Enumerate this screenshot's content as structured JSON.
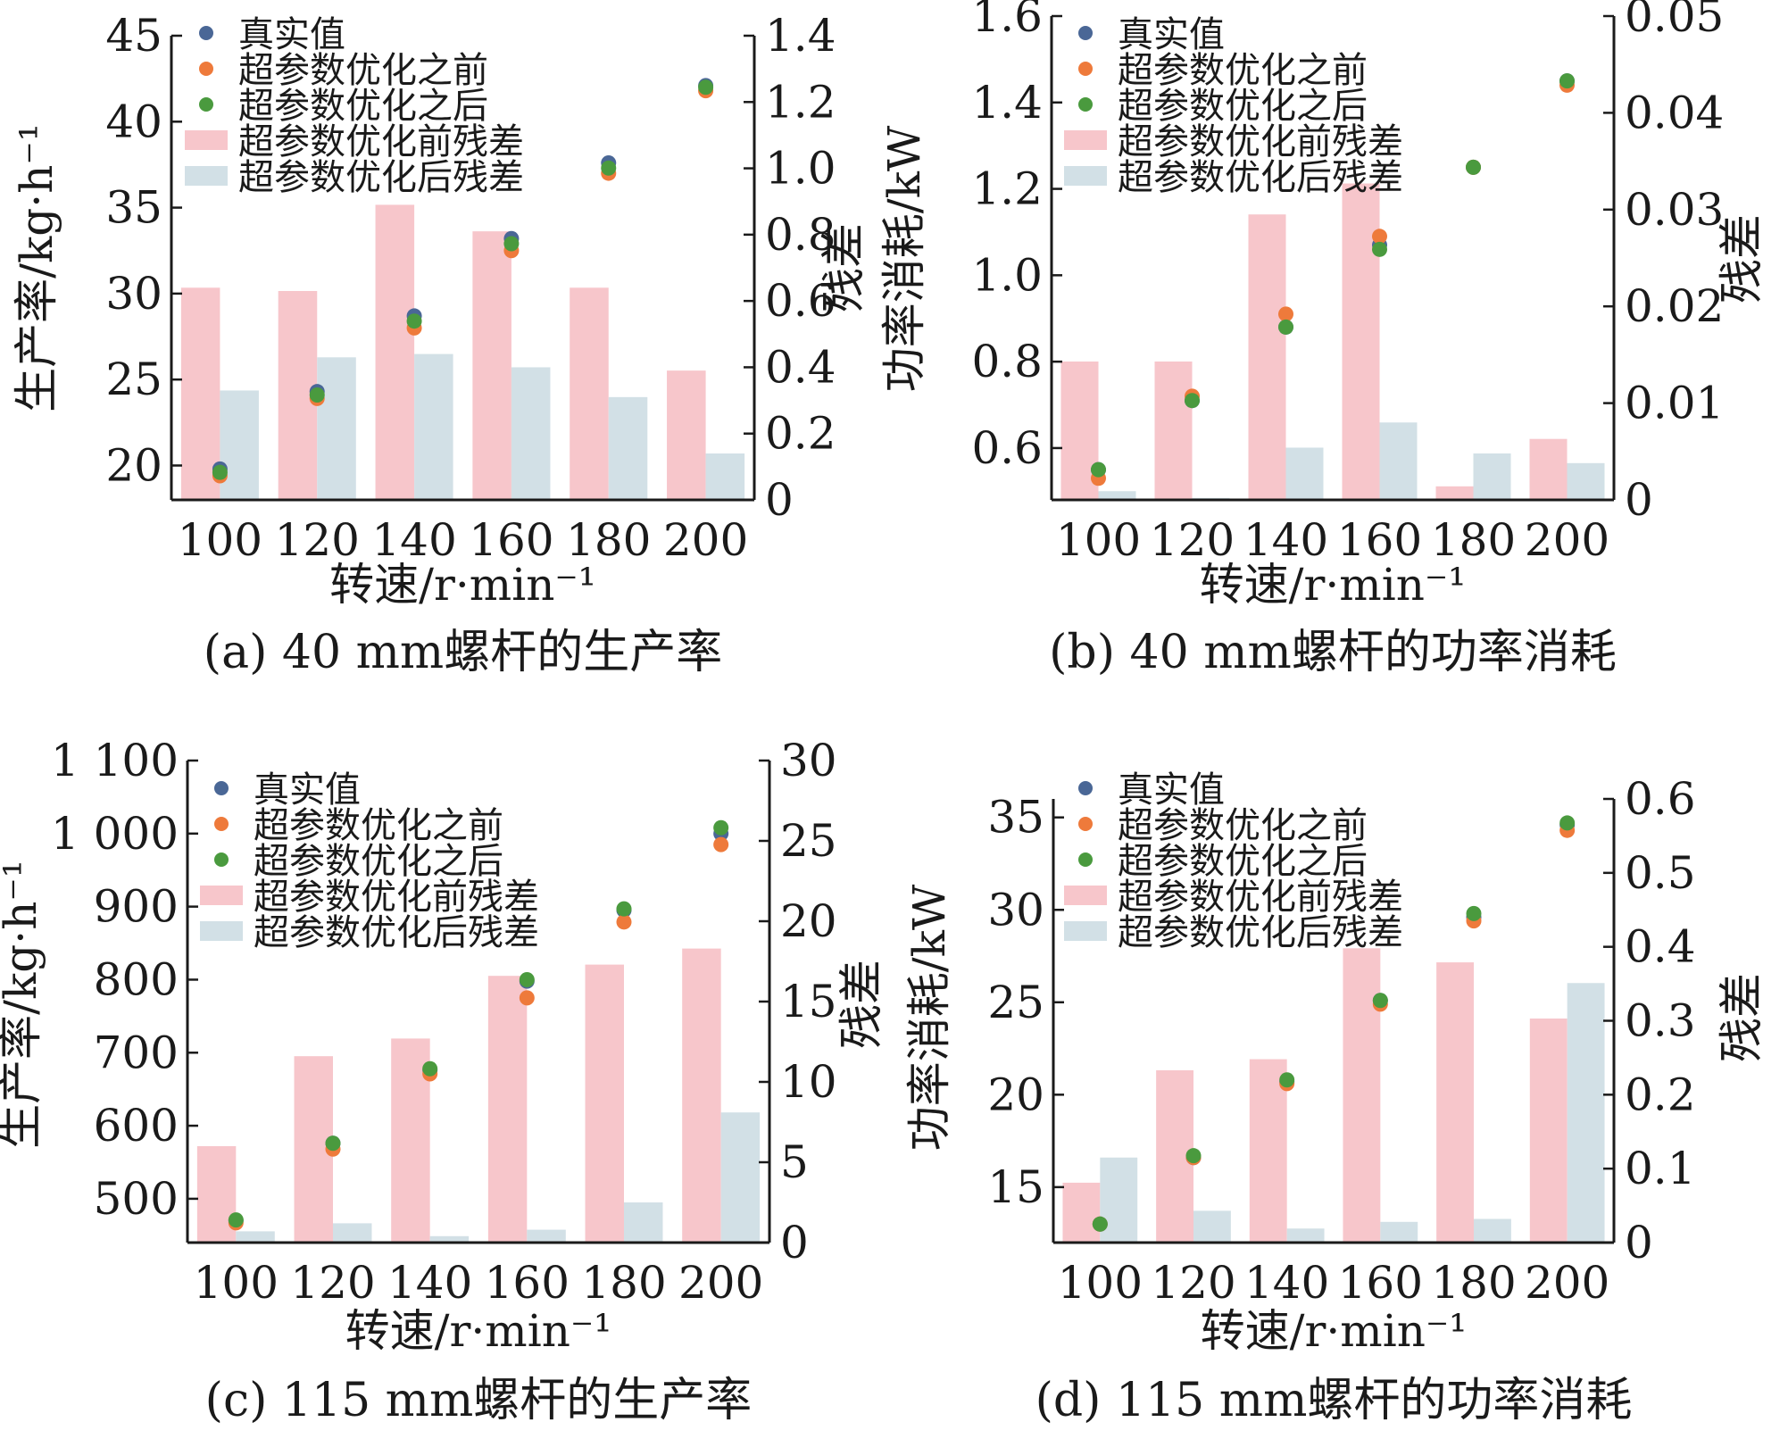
{
  "colors": {
    "true_value": "#4a6796",
    "before": "#ee7a3b",
    "after": "#4a9a3e",
    "resid_before": "#f7c6cb",
    "resid_after": "#d2e0e6",
    "axis": "#1a1a1a"
  },
  "legend": {
    "true_value": "真实值",
    "before": "超参数优化之前",
    "after": "超参数优化之后",
    "resid_before": "超参数优化前残差",
    "resid_after": "超参数优化后残差"
  },
  "chart_data": [
    {
      "type": "bar+scatter",
      "caption": "(a) 40 mm螺杆的生产率",
      "xlabel": "转速/r·min⁻¹",
      "ylabel": "生产率/kg·h⁻¹",
      "ylabel2": "残差",
      "categories": [
        "100",
        "120",
        "140",
        "160",
        "180",
        "200"
      ],
      "ylim": [
        18,
        45
      ],
      "yticks": [
        20,
        25,
        30,
        35,
        40,
        45
      ],
      "ytick_labels": [
        "20",
        "25",
        "30",
        "35",
        "40",
        "45"
      ],
      "y2lim": [
        0,
        1.4
      ],
      "y2ticks": [
        0,
        0.2,
        0.4,
        0.6,
        0.8,
        1.0,
        1.2,
        1.4
      ],
      "y2tick_labels": [
        "0",
        "0.2",
        "0.4",
        "0.6",
        "0.8",
        "1.0",
        "1.2",
        "1.4"
      ],
      "series": [
        {
          "key": "true_value",
          "kind": "scatter",
          "axis": "left",
          "values": [
            19.8,
            24.3,
            28.7,
            33.2,
            37.6,
            42.1
          ]
        },
        {
          "key": "before",
          "kind": "scatter",
          "axis": "left",
          "values": [
            19.4,
            23.9,
            28.0,
            32.5,
            37.0,
            41.8
          ]
        },
        {
          "key": "after",
          "kind": "scatter",
          "axis": "left",
          "values": [
            19.6,
            24.1,
            28.4,
            32.9,
            37.3,
            42.0
          ]
        },
        {
          "key": "resid_before",
          "kind": "bar",
          "axis": "right",
          "values": [
            0.64,
            0.63,
            0.89,
            0.81,
            0.64,
            0.39
          ]
        },
        {
          "key": "resid_after",
          "kind": "bar",
          "axis": "right",
          "values": [
            0.33,
            0.43,
            0.44,
            0.4,
            0.31,
            0.14
          ]
        }
      ]
    },
    {
      "type": "bar+scatter",
      "caption": "(b) 40 mm螺杆的功率消耗",
      "xlabel": "转速/r·min⁻¹",
      "ylabel": "功率消耗/kW",
      "ylabel2": "残差",
      "categories": [
        "100",
        "120",
        "140",
        "160",
        "180",
        "200"
      ],
      "ylim": [
        0.48,
        1.6
      ],
      "yticks": [
        0.6,
        0.8,
        1.0,
        1.2,
        1.4,
        1.6
      ],
      "ytick_labels": [
        "0.6",
        "0.8",
        "1.0",
        "1.2",
        "1.4",
        "1.6"
      ],
      "y2lim": [
        0,
        0.05
      ],
      "y2ticks": [
        0,
        0.01,
        0.02,
        0.03,
        0.04,
        0.05
      ],
      "y2tick_labels": [
        "0",
        "0.01",
        "0.02",
        "0.03",
        "0.04",
        "0.05"
      ],
      "series": [
        {
          "key": "true_value",
          "kind": "scatter",
          "axis": "left",
          "values": [
            0.55,
            0.71,
            0.88,
            1.07,
            1.25,
            1.45
          ]
        },
        {
          "key": "before",
          "kind": "scatter",
          "axis": "left",
          "values": [
            0.53,
            0.72,
            0.91,
            1.09,
            1.25,
            1.44
          ]
        },
        {
          "key": "after",
          "kind": "scatter",
          "axis": "left",
          "values": [
            0.55,
            0.71,
            0.88,
            1.06,
            1.25,
            1.45
          ]
        },
        {
          "key": "resid_before",
          "kind": "bar",
          "axis": "right",
          "values": [
            0.0143,
            0.0143,
            0.0295,
            0.0327,
            0.0014,
            0.0063
          ]
        },
        {
          "key": "resid_after",
          "kind": "bar",
          "axis": "right",
          "values": [
            0.0009,
            0.0002,
            0.0054,
            0.008,
            0.0048,
            0.0038
          ]
        }
      ]
    },
    {
      "type": "bar+scatter",
      "caption": "(c) 115 mm螺杆的生产率",
      "xlabel": "转速/r·min⁻¹",
      "ylabel": "生产率/kg·h⁻¹",
      "ylabel2": "残差",
      "categories": [
        "100",
        "120",
        "140",
        "160",
        "180",
        "200"
      ],
      "ylim": [
        440,
        1100
      ],
      "yticks": [
        500,
        600,
        700,
        800,
        900,
        1000,
        1100
      ],
      "ytick_labels": [
        "500",
        "600",
        "700",
        "800",
        "900",
        "1 000",
        "1 100"
      ],
      "y2lim": [
        0,
        30
      ],
      "y2ticks": [
        0,
        5,
        10,
        15,
        20,
        25,
        30
      ],
      "y2tick_labels": [
        "0",
        "5",
        "10",
        "15",
        "20",
        "25",
        "30"
      ],
      "series": [
        {
          "key": "true_value",
          "kind": "scatter",
          "axis": "left",
          "values": [
            470,
            576,
            676,
            798,
            895,
            1000
          ]
        },
        {
          "key": "before",
          "kind": "scatter",
          "axis": "left",
          "values": [
            467,
            568,
            671,
            775,
            879,
            985
          ]
        },
        {
          "key": "after",
          "kind": "scatter",
          "axis": "left",
          "values": [
            471,
            576,
            678,
            800,
            897,
            1008
          ]
        },
        {
          "key": "resid_before",
          "kind": "bar",
          "axis": "right",
          "values": [
            6.0,
            11.6,
            12.7,
            16.6,
            17.3,
            18.3
          ]
        },
        {
          "key": "resid_after",
          "kind": "bar",
          "axis": "right",
          "values": [
            0.7,
            1.2,
            0.4,
            0.8,
            2.5,
            8.1
          ]
        }
      ]
    },
    {
      "type": "bar+scatter",
      "caption": "(d) 115 mm螺杆的功率消耗",
      "xlabel": "转速/r·min⁻¹",
      "ylabel": "功率消耗/kW",
      "ylabel2": "残差",
      "categories": [
        "100",
        "120",
        "140",
        "160",
        "180",
        "200"
      ],
      "ylim": [
        12,
        36
      ],
      "yticks": [
        15,
        20,
        25,
        30,
        35
      ],
      "ytick_labels": [
        "15",
        "20",
        "25",
        "30",
        "35"
      ],
      "y2lim": [
        0,
        0.6
      ],
      "y2ticks": [
        0,
        0.1,
        0.2,
        0.3,
        0.4,
        0.5,
        0.6
      ],
      "y2tick_labels": [
        "0",
        "0.1",
        "0.2",
        "0.3",
        "0.4",
        "0.5",
        "0.6"
      ],
      "series": [
        {
          "key": "true_value",
          "kind": "scatter",
          "axis": "left",
          "values": [
            13.0,
            16.6,
            20.7,
            25.1,
            29.6,
            34.6
          ]
        },
        {
          "key": "before",
          "kind": "scatter",
          "axis": "left",
          "values": [
            13.0,
            16.6,
            20.6,
            24.9,
            29.4,
            34.3
          ]
        },
        {
          "key": "after",
          "kind": "scatter",
          "axis": "left",
          "values": [
            13.0,
            16.7,
            20.8,
            25.1,
            29.8,
            34.7
          ]
        },
        {
          "key": "resid_before",
          "kind": "bar",
          "axis": "right",
          "values": [
            0.081,
            0.233,
            0.248,
            0.398,
            0.379,
            0.303
          ]
        },
        {
          "key": "resid_after",
          "kind": "bar",
          "axis": "right",
          "values": [
            0.115,
            0.043,
            0.019,
            0.028,
            0.032,
            0.351
          ]
        }
      ]
    }
  ]
}
